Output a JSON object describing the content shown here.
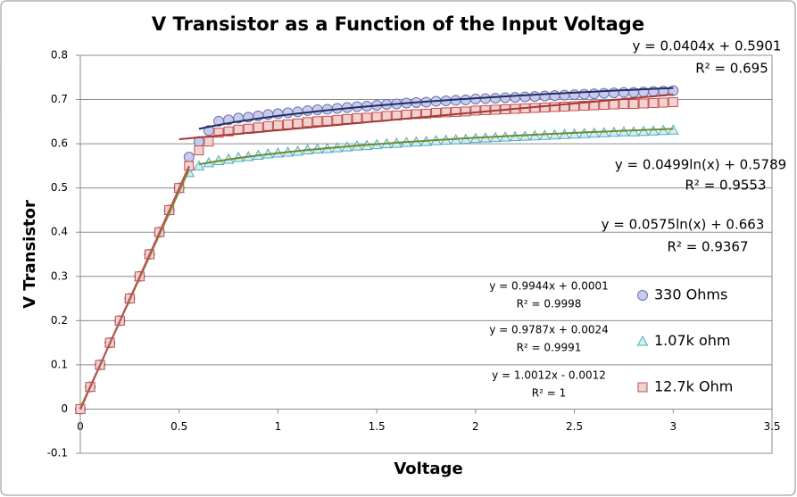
{
  "chart_data": {
    "type": "scatter",
    "title": "V Transistor as a Function of the Input Voltage",
    "x_label": "Voltage",
    "y_label": "V Transistor",
    "xlim": [
      0,
      3.5
    ],
    "xticks": [
      0,
      0.5,
      1,
      1.5,
      2,
      2.5,
      3,
      3.5
    ],
    "ylim": [
      -0.1,
      0.8
    ],
    "yticks": [
      -0.1,
      0,
      0.1,
      0.2,
      0.3,
      0.4,
      0.5,
      0.6,
      0.7,
      0.8
    ],
    "grid": true,
    "legend": "right",
    "x": [
      0,
      0.05,
      0.1,
      0.15,
      0.2,
      0.25,
      0.3,
      0.35,
      0.4,
      0.45,
      0.5,
      0.55,
      0.6,
      0.65,
      0.7,
      0.75,
      0.8,
      0.85,
      0.9,
      0.95,
      1,
      1.05,
      1.1,
      1.15,
      1.2,
      1.25,
      1.3,
      1.35,
      1.4,
      1.45,
      1.5,
      1.55,
      1.6,
      1.65,
      1.7,
      1.75,
      1.8,
      1.85,
      1.9,
      1.95,
      2,
      2.05,
      2.1,
      2.15,
      2.2,
      2.25,
      2.3,
      2.35,
      2.4,
      2.45,
      2.5,
      2.55,
      2.6,
      2.65,
      2.7,
      2.75,
      2.8,
      2.85,
      2.9,
      2.95,
      3
    ],
    "series": [
      {
        "name": "330 Ohms",
        "marker": "circle",
        "color": "#6b6fb0",
        "fill": "#c9cbec",
        "values": [
          0,
          0.05,
          0.1,
          0.15,
          0.2,
          0.25,
          0.3,
          0.35,
          0.4,
          0.45,
          0.5,
          0.57,
          0.605,
          0.63,
          0.651,
          0.654,
          0.658,
          0.66,
          0.663,
          0.666,
          0.668,
          0.67,
          0.672,
          0.675,
          0.677,
          0.678,
          0.68,
          0.682,
          0.684,
          0.685,
          0.687,
          0.689,
          0.69,
          0.692,
          0.693,
          0.694,
          0.696,
          0.697,
          0.698,
          0.699,
          0.701,
          0.702,
          0.703,
          0.704,
          0.705,
          0.706,
          0.707,
          0.708,
          0.709,
          0.71,
          0.711,
          0.712,
          0.713,
          0.714,
          0.715,
          0.716,
          0.716,
          0.717,
          0.718,
          0.719,
          0.72
        ]
      },
      {
        "name": "1.07k ohm",
        "marker": "triangle",
        "color": "#4bacc6",
        "fill": "#d5eeea",
        "values": [
          0,
          0.05,
          0.1,
          0.15,
          0.2,
          0.25,
          0.3,
          0.35,
          0.4,
          0.449,
          0.499,
          0.535,
          0.55,
          0.557,
          0.562,
          0.565,
          0.569,
          0.571,
          0.574,
          0.577,
          0.579,
          0.581,
          0.583,
          0.586,
          0.588,
          0.589,
          0.591,
          0.593,
          0.595,
          0.596,
          0.598,
          0.6,
          0.601,
          0.603,
          0.604,
          0.605,
          0.607,
          0.608,
          0.609,
          0.61,
          0.612,
          0.613,
          0.614,
          0.615,
          0.616,
          0.617,
          0.618,
          0.619,
          0.62,
          0.621,
          0.622,
          0.623,
          0.624,
          0.625,
          0.626,
          0.627,
          0.627,
          0.628,
          0.629,
          0.63,
          0.631
        ]
      },
      {
        "name": "12.7k Ohm",
        "marker": "square",
        "color": "#c0504d",
        "fill": "#f2d2d1",
        "values": [
          0,
          0.05,
          0.1,
          0.15,
          0.2,
          0.25,
          0.3,
          0.35,
          0.4,
          0.45,
          0.5,
          0.55,
          0.585,
          0.605,
          0.625,
          0.628,
          0.632,
          0.634,
          0.637,
          0.64,
          0.642,
          0.644,
          0.646,
          0.649,
          0.651,
          0.652,
          0.654,
          0.656,
          0.658,
          0.659,
          0.661,
          0.663,
          0.664,
          0.666,
          0.667,
          0.668,
          0.67,
          0.671,
          0.672,
          0.673,
          0.675,
          0.676,
          0.677,
          0.678,
          0.679,
          0.68,
          0.681,
          0.682,
          0.683,
          0.684,
          0.685,
          0.686,
          0.687,
          0.688,
          0.689,
          0.69,
          0.69,
          0.691,
          0.692,
          0.693,
          0.694
        ]
      }
    ],
    "trendlines": [
      {
        "kind": "linear",
        "coef": [
          0.9944,
          0.0001
        ],
        "xrange": [
          0,
          0.55
        ],
        "color": "#4f81bd",
        "equation": "y = 0.9944x + 0.0001",
        "r2": "R² = 0.9998"
      },
      {
        "kind": "linear",
        "coef": [
          0.9787,
          0.0024
        ],
        "xrange": [
          0,
          0.55
        ],
        "color": "#77933c",
        "equation": "y = 0.9787x + 0.0024",
        "r2": "R² = 0.9991"
      },
      {
        "kind": "linear",
        "coef": [
          1.0012,
          -0.0012
        ],
        "xrange": [
          0,
          0.55
        ],
        "color": "#c0504d",
        "equation": "y = 1.0012x - 0.0012",
        "r2": "R² = 1"
      },
      {
        "kind": "linear",
        "coef": [
          0.0404,
          0.5901
        ],
        "xrange": [
          0.5,
          3
        ],
        "color": "#a33a36",
        "equation": "y = 0.0404x + 0.5901",
        "r2": "R² = 0.695"
      },
      {
        "kind": "log",
        "coef": [
          0.0499,
          0.5789
        ],
        "xrange": [
          0.6,
          3
        ],
        "color": "#6e8b2e",
        "equation": "y = 0.0499ln(x) + 0.5789",
        "r2": "R² = 0.9553"
      },
      {
        "kind": "log",
        "coef": [
          0.0575,
          0.663
        ],
        "xrange": [
          0.6,
          3
        ],
        "color": "#1f2f5e",
        "equation": "y = 0.0575ln(x) + 0.663",
        "r2": "R² = 0.9367"
      }
    ]
  }
}
